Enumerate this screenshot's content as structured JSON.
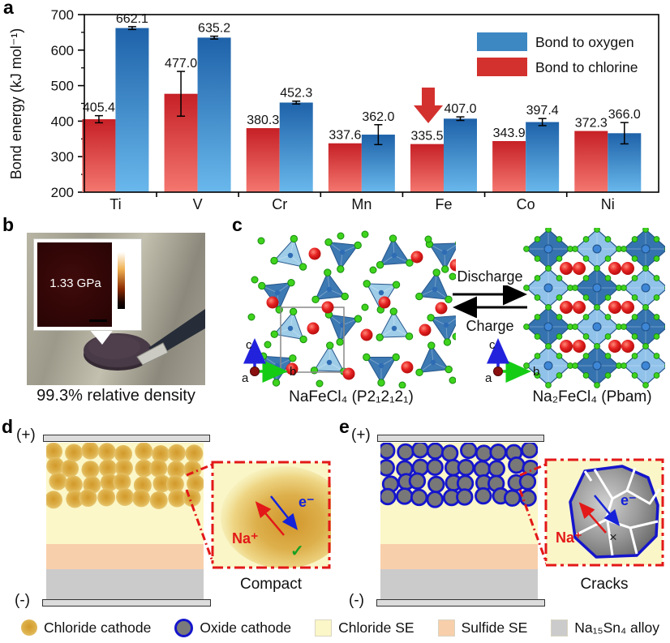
{
  "figure_labels": {
    "a": "a",
    "b": "b",
    "c": "c",
    "d": "d",
    "e": "e"
  },
  "chart_data": {
    "type": "bar",
    "categories": [
      "Ti",
      "V",
      "Cr",
      "Mn",
      "Fe",
      "Co",
      "Ni"
    ],
    "series": [
      {
        "name": "Bond to chlorine",
        "color": "#d3312e",
        "gradient_top": "#c62026",
        "gradient_bottom": "#f4776f",
        "values": [
          405.4,
          477.0,
          380.3,
          337.6,
          335.5,
          343.9,
          372.3
        ],
        "errors": [
          10,
          63,
          0,
          0,
          0,
          0,
          0
        ]
      },
      {
        "name": "Bond to oxygen",
        "color": "#3d87c3",
        "gradient_top": "#1e62a9",
        "gradient_bottom": "#69b8ec",
        "values": [
          662.1,
          635.2,
          452.3,
          362.0,
          407.0,
          397.4,
          366.0
        ],
        "errors": [
          4,
          4,
          4,
          28,
          5,
          10,
          30
        ]
      }
    ],
    "legend": [
      {
        "label": "Bond to oxygen",
        "color": "#3d87c3"
      },
      {
        "label": "Bond to chlorine",
        "color": "#d3312e"
      }
    ],
    "ylabel": "Bond energy (kJ mol⁻¹)",
    "ylim": [
      200,
      700
    ],
    "yticks": [
      200,
      300,
      400,
      500,
      600,
      700
    ],
    "grid": false,
    "legend_position": "top-right",
    "highlight": {
      "category": "Fe",
      "marker": "red-down-arrow",
      "color": "#d3312e"
    }
  },
  "panel_b": {
    "inset_value": "1.33 GPa",
    "scale_max": "5 GPa",
    "scale_min": "0 GPa",
    "caption": "99.3% relative density"
  },
  "panel_c": {
    "reaction_forward": "Discharge",
    "reaction_backward": "Charge",
    "left_caption": "NaFeCl₄ (P2₁2₁2₁)",
    "right_caption": "Na₂FeCl₄ (Pbam)",
    "axis_a": "a",
    "axis_b": "b",
    "axis_c": "c"
  },
  "panel_d": {
    "positive": "(+)",
    "negative": "(-)",
    "ion": "Na⁺",
    "electron": "e⁻",
    "check": "✓",
    "caption": "Compact"
  },
  "panel_e": {
    "positive": "(+)",
    "negative": "(-)",
    "ion": "Na⁺",
    "electron": "e⁻",
    "cross": "×",
    "caption": "Cracks"
  },
  "legend_bottom": {
    "items": [
      {
        "label": "Chloride cathode",
        "swatch": "gold-circle",
        "color": "#daa62e"
      },
      {
        "label": "Oxide cathode",
        "swatch": "ring-circle",
        "color": "#7a7a7a",
        "ring_color": "#1515cc"
      },
      {
        "label": "Chloride SE",
        "swatch": "square",
        "color": "#fbf7c8"
      },
      {
        "label": "Sulfide SE",
        "swatch": "square",
        "color": "#f8cfab"
      },
      {
        "label": "Na₁₅Sn₄ alloy",
        "swatch": "square",
        "color": "#cbcbcb"
      }
    ]
  },
  "colors": {
    "arrow_red": "#e31818",
    "ion_red": "#e31818",
    "electron_blue": "#1522d8",
    "check_green": "#18a024",
    "oxide_ring_blue": "#1515cc",
    "chloride_se": "#fbf7c8",
    "sulfide_se": "#f8cfab",
    "alloy_gray": "#cbcbcb"
  }
}
